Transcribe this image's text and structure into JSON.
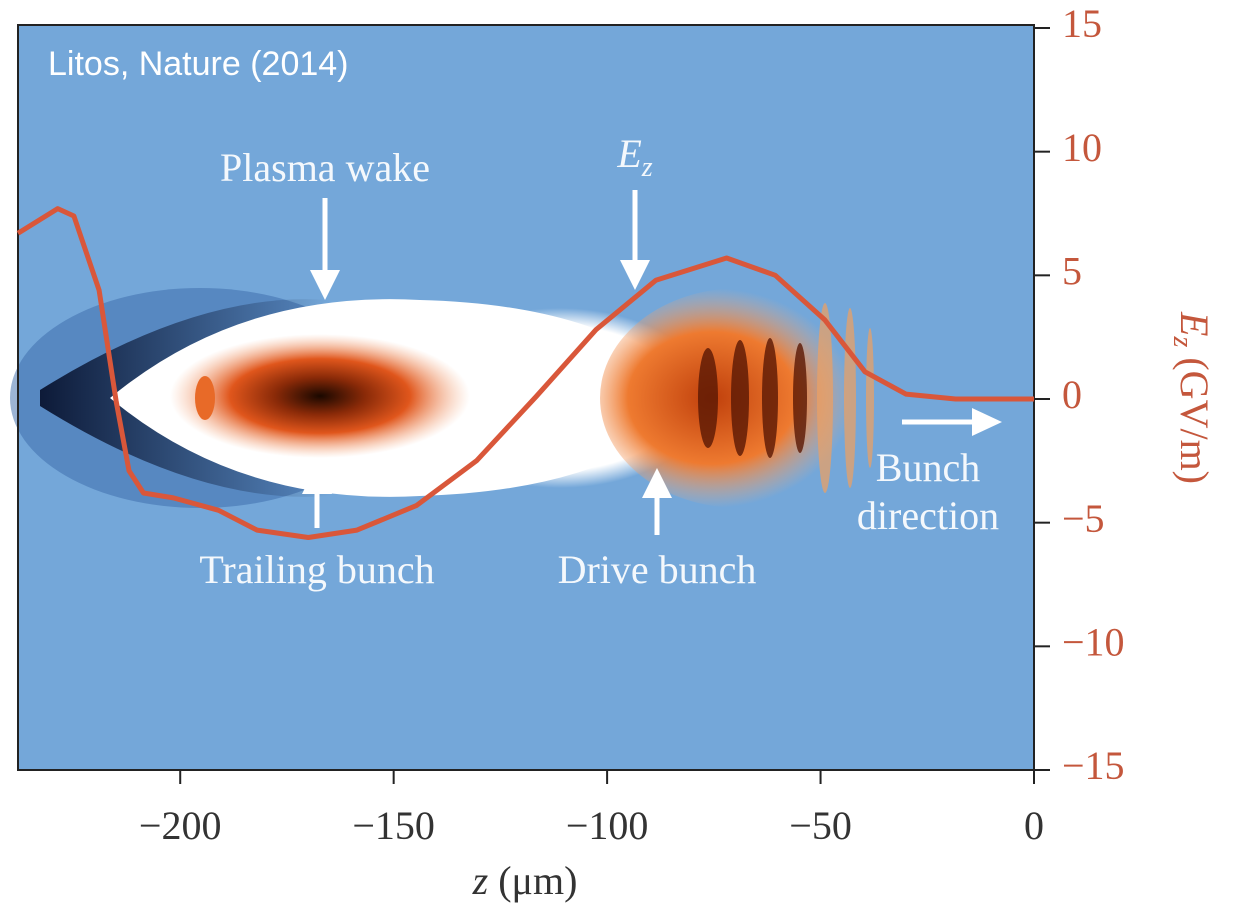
{
  "chart_data": {
    "type": "line",
    "xlabel": {
      "symbol": "z",
      "unit": "(μm)"
    },
    "ylabel": {
      "symbol": "E",
      "subscript": "z",
      "unit": " (GV/m)"
    },
    "x": [
      -238,
      -228.7,
      -224.9,
      -219,
      -215,
      -212,
      -208.6,
      -201.6,
      -191,
      -182,
      -170,
      -158.6,
      -144.6,
      -130.6,
      -116.6,
      -102.6,
      -88.6,
      -72,
      -60.6,
      -49,
      -39.6,
      -30,
      -18.4,
      0
    ],
    "values": [
      6.7,
      7.7,
      7.4,
      4.4,
      -0.1,
      -2.9,
      -3.8,
      -4.0,
      -4.5,
      -5.3,
      -5.6,
      -5.3,
      -4.3,
      -2.5,
      0.1,
      2.8,
      4.8,
      5.7,
      5.0,
      3.2,
      1.1,
      0.2,
      0,
      0
    ],
    "color": "#d9573a",
    "xlim": [
      -238,
      0
    ],
    "xticks": [
      {
        "value": -200,
        "label": "−200"
      },
      {
        "value": -150,
        "label": "−150"
      },
      {
        "value": -100,
        "label": "−100"
      },
      {
        "value": -50,
        "label": "−50"
      },
      0
    ],
    "ylim": [
      -15,
      15
    ],
    "yticks": [
      15,
      10,
      5,
      0,
      {
        "value": -5,
        "label": "−5"
      },
      {
        "value": -10,
        "label": "−10"
      },
      {
        "value": -15,
        "label": "−15"
      }
    ]
  },
  "annotations": {
    "plasma_wake": "Plasma wake",
    "ez": {
      "symbol": "E",
      "subscript": "z"
    },
    "trailing_bunch": "Trailing bunch",
    "drive_bunch": "Drive bunch",
    "bunch_direction": [
      "Bunch",
      "direction"
    ],
    "source": "Litos, Nature (2014)"
  }
}
